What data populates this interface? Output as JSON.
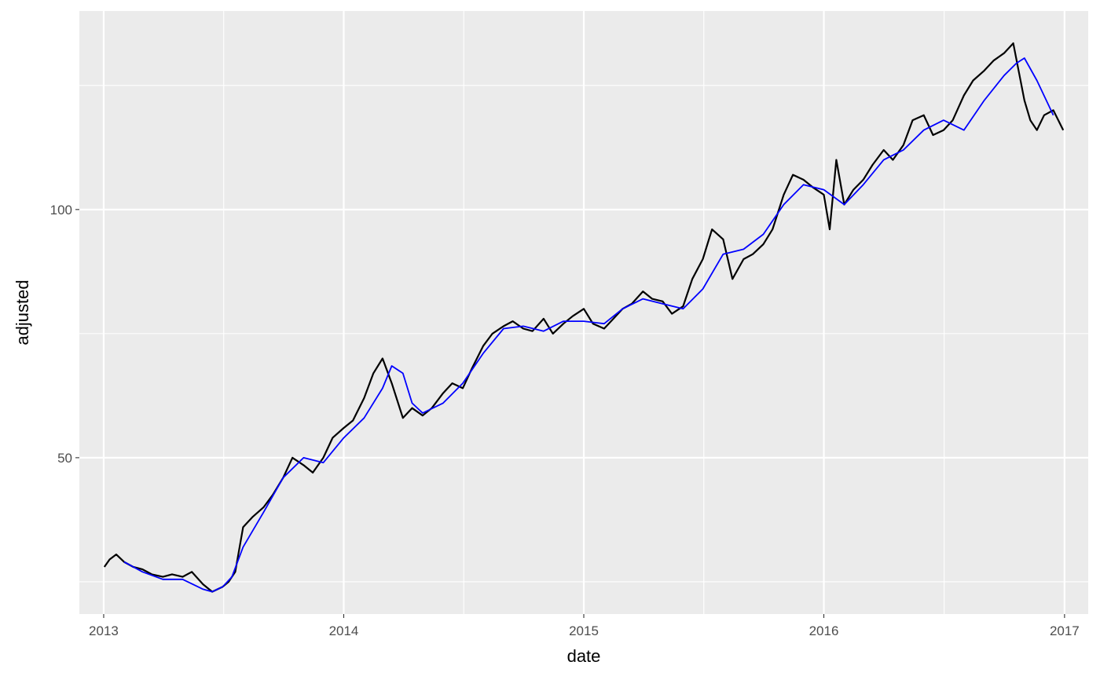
{
  "chart_data": {
    "type": "line",
    "title": "",
    "xlabel": "date",
    "ylabel": "adjusted",
    "x_axis_type": "date",
    "xlim": [
      "2012-11-25",
      "2017-02-06"
    ],
    "ylim": [
      18.5,
      140
    ],
    "x_ticks": [
      "2013-01-01",
      "2014-01-01",
      "2015-01-01",
      "2016-01-01",
      "2017-01-01"
    ],
    "x_tick_labels": [
      "2013",
      "2014",
      "2015",
      "2016",
      "2017"
    ],
    "y_ticks": [
      50,
      100
    ],
    "y_tick_labels": [
      "50",
      "100"
    ],
    "y_minor_ticks": [
      25,
      75,
      125
    ],
    "grid": true,
    "legend": "none",
    "colors": {
      "panel": "#ebebeb",
      "grid": "#ffffff",
      "price": "#000000",
      "moving_average": "#0000ff"
    },
    "series": [
      {
        "color": "#000000",
        "x": [
          "2013-01-02",
          "2013-01-10",
          "2013-01-20",
          "2013-02-01",
          "2013-02-15",
          "2013-03-01",
          "2013-03-15",
          "2013-04-01",
          "2013-04-15",
          "2013-05-01",
          "2013-05-15",
          "2013-06-01",
          "2013-06-15",
          "2013-07-01",
          "2013-07-10",
          "2013-07-20",
          "2013-08-01",
          "2013-08-15",
          "2013-09-01",
          "2013-09-15",
          "2013-10-01",
          "2013-10-15",
          "2013-11-01",
          "2013-11-15",
          "2013-12-01",
          "2013-12-15",
          "2014-01-01",
          "2014-01-15",
          "2014-02-01",
          "2014-02-15",
          "2014-03-01",
          "2014-03-15",
          "2014-04-01",
          "2014-04-15",
          "2014-05-01",
          "2014-05-15",
          "2014-06-01",
          "2014-06-15",
          "2014-07-01",
          "2014-07-15",
          "2014-08-01",
          "2014-08-15",
          "2014-09-01",
          "2014-09-15",
          "2014-10-01",
          "2014-10-15",
          "2014-11-01",
          "2014-11-15",
          "2014-12-01",
          "2014-12-15",
          "2015-01-01",
          "2015-01-15",
          "2015-02-01",
          "2015-02-15",
          "2015-03-01",
          "2015-03-15",
          "2015-04-01",
          "2015-04-15",
          "2015-05-01",
          "2015-05-15",
          "2015-06-01",
          "2015-06-15",
          "2015-07-01",
          "2015-07-15",
          "2015-08-01",
          "2015-08-15",
          "2015-09-01",
          "2015-09-15",
          "2015-10-01",
          "2015-10-15",
          "2015-11-01",
          "2015-11-15",
          "2015-12-01",
          "2015-12-15",
          "2016-01-01",
          "2016-01-10",
          "2016-01-20",
          "2016-02-01",
          "2016-02-15",
          "2016-03-01",
          "2016-03-15",
          "2016-04-01",
          "2016-04-15",
          "2016-05-01",
          "2016-05-15",
          "2016-06-01",
          "2016-06-15",
          "2016-07-01",
          "2016-07-15",
          "2016-08-01",
          "2016-08-15",
          "2016-09-01",
          "2016-09-15",
          "2016-10-01",
          "2016-10-15",
          "2016-11-01",
          "2016-11-10",
          "2016-11-20",
          "2016-12-01",
          "2016-12-15",
          "2016-12-30"
        ],
        "values": [
          28.0,
          29.5,
          30.5,
          29.0,
          28.0,
          27.5,
          26.5,
          26.0,
          26.5,
          26.0,
          27.0,
          24.5,
          23.0,
          24.0,
          25.0,
          27.0,
          36.0,
          38.0,
          40.0,
          42.5,
          46.0,
          50.0,
          48.5,
          47.0,
          50.0,
          54.0,
          56.0,
          57.5,
          62.0,
          67.0,
          70.0,
          65.0,
          58.0,
          60.0,
          58.5,
          60.0,
          63.0,
          65.0,
          64.0,
          68.0,
          72.5,
          75.0,
          76.5,
          77.5,
          76.0,
          75.5,
          78.0,
          75.0,
          77.0,
          78.5,
          80.0,
          77.0,
          76.0,
          78.0,
          80.0,
          81.0,
          83.5,
          82.0,
          81.5,
          79.0,
          80.5,
          86.0,
          90.0,
          96.0,
          94.0,
          86.0,
          90.0,
          91.0,
          93.0,
          96.0,
          103.0,
          107.0,
          106.0,
          104.5,
          103.0,
          96.0,
          110.0,
          101.0,
          104.0,
          106.0,
          109.0,
          112.0,
          110.0,
          113.0,
          118.0,
          119.0,
          115.0,
          116.0,
          118.0,
          123.0,
          126.0,
          128.0,
          130.0,
          131.5,
          133.5,
          122.0,
          118.0,
          116.0,
          119.0,
          120.0,
          116.0
        ]
      },
      {
        "color": "#0000ff",
        "x": [
          "2013-02-01",
          "2013-03-01",
          "2013-04-01",
          "2013-05-01",
          "2013-06-01",
          "2013-06-15",
          "2013-07-01",
          "2013-07-15",
          "2013-08-01",
          "2013-09-01",
          "2013-10-01",
          "2013-11-01",
          "2013-12-01",
          "2014-01-01",
          "2014-02-01",
          "2014-03-01",
          "2014-03-15",
          "2014-04-01",
          "2014-04-15",
          "2014-05-01",
          "2014-06-01",
          "2014-07-01",
          "2014-08-01",
          "2014-09-01",
          "2014-10-01",
          "2014-11-01",
          "2014-12-01",
          "2015-01-01",
          "2015-02-01",
          "2015-03-01",
          "2015-04-01",
          "2015-05-01",
          "2015-06-01",
          "2015-07-01",
          "2015-08-01",
          "2015-09-01",
          "2015-10-01",
          "2015-11-01",
          "2015-12-01",
          "2016-01-01",
          "2016-02-01",
          "2016-03-01",
          "2016-04-01",
          "2016-05-01",
          "2016-06-01",
          "2016-07-01",
          "2016-08-01",
          "2016-09-01",
          "2016-10-01",
          "2016-10-20",
          "2016-11-01",
          "2016-11-20",
          "2016-12-15"
        ],
        "values": [
          29.0,
          27.0,
          25.5,
          25.5,
          23.5,
          23.0,
          24.0,
          26.0,
          32.0,
          39.0,
          46.0,
          50.0,
          49.0,
          54.0,
          58.0,
          64.0,
          68.5,
          67.0,
          61.0,
          59.0,
          61.0,
          65.0,
          71.0,
          76.0,
          76.5,
          75.5,
          77.5,
          77.5,
          77.0,
          80.0,
          82.0,
          81.0,
          80.0,
          84.0,
          91.0,
          92.0,
          95.0,
          101.0,
          105.0,
          104.0,
          101.0,
          105.0,
          110.0,
          112.0,
          116.0,
          118.0,
          116.0,
          122.0,
          127.0,
          129.5,
          130.5,
          126.0,
          119.0
        ]
      }
    ]
  }
}
